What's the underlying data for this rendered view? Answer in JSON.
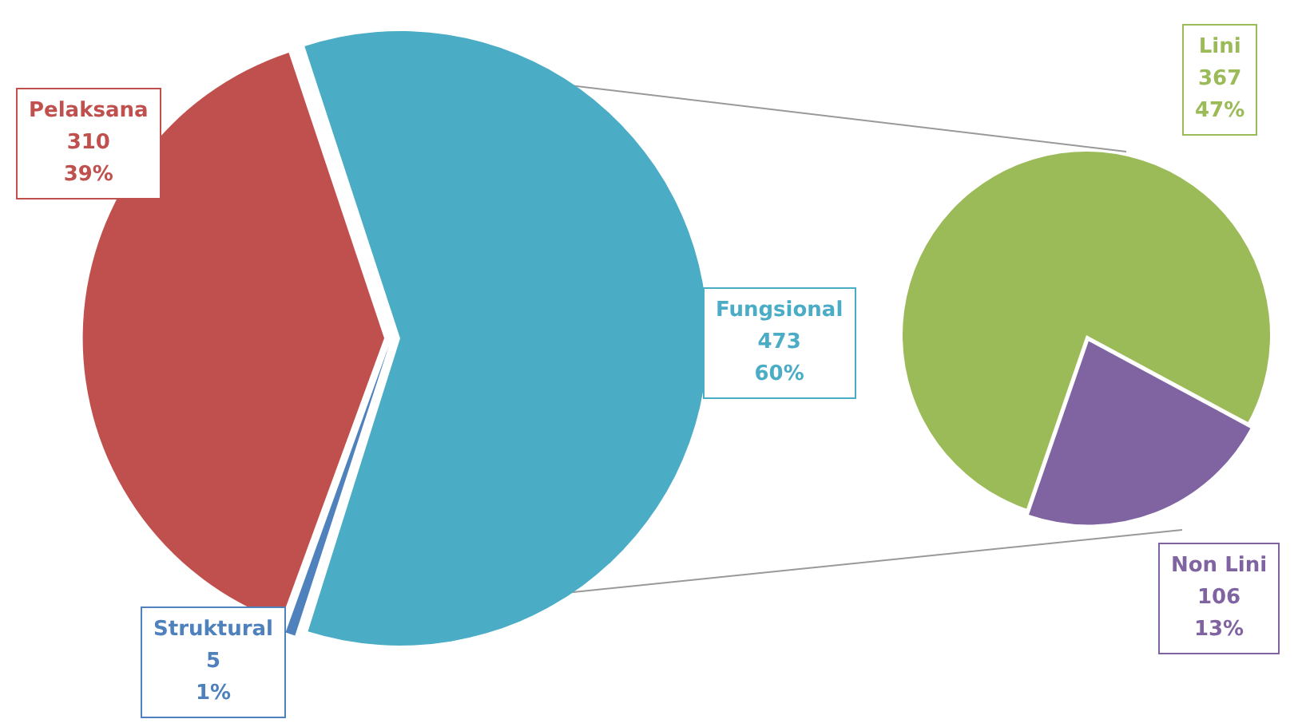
{
  "chart_data": [
    {
      "type": "pie",
      "categories": [
        "Pelaksana",
        "Fungsional",
        "Struktural"
      ],
      "values": [
        310,
        473,
        5
      ],
      "colors": [
        "#c0504d",
        "#4bacc6",
        "#4f81bd"
      ],
      "value_labels": [
        "310\n39%",
        "473\n60%",
        "5\n1%"
      ],
      "legend": false
    },
    {
      "type": "pie",
      "categories": [
        "Lini",
        "Non Lini"
      ],
      "values": [
        367,
        106
      ],
      "colors": [
        "#9bbb59",
        "#8064a2"
      ],
      "value_labels": [
        "367\n47%",
        "106\n13%"
      ],
      "legend": false
    }
  ]
}
